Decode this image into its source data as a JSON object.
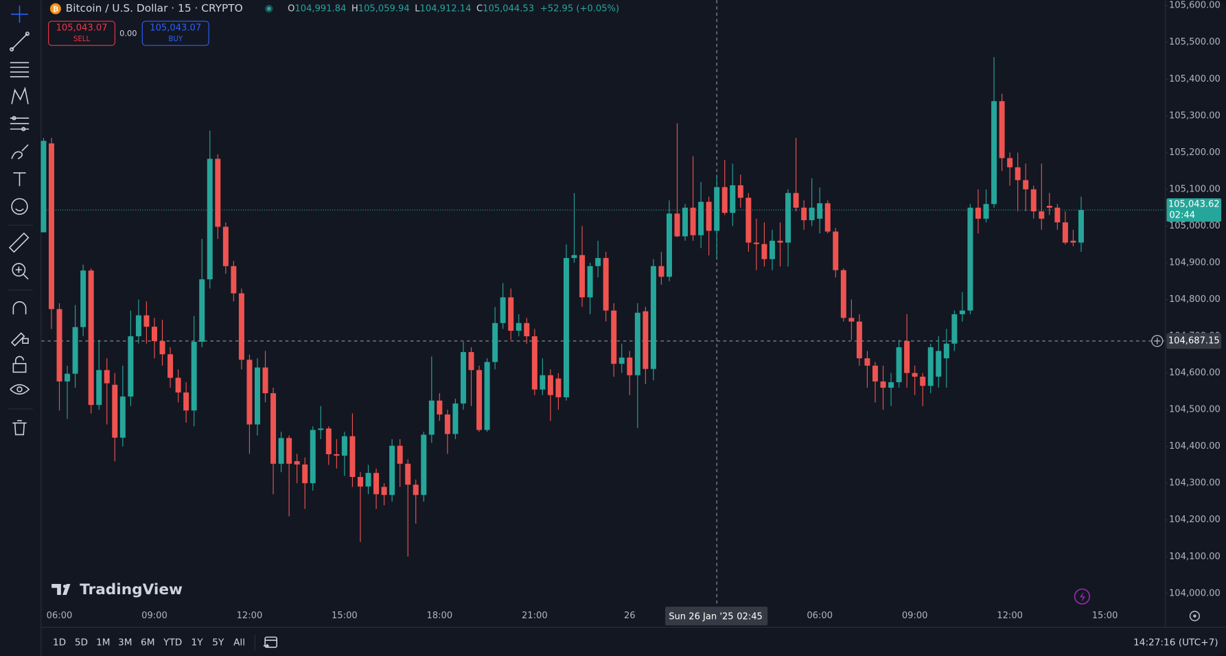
{
  "header": {
    "symbol": "Bitcoin / U.S. Dollar · 15 · CRYPTO",
    "o_key": "O",
    "o": "104,991.84",
    "h_key": "H",
    "h": "105,059.94",
    "l_key": "L",
    "l": "104,912.14",
    "c_key": "C",
    "c": "105,044.53",
    "change": "+52.95 (+0.05%)"
  },
  "trade": {
    "sell_price": "105,043.07",
    "sell": "SELL",
    "spread": "0.00",
    "buy_price": "105,043.07",
    "buy": "BUY"
  },
  "watermark": "TradingView",
  "ranges": [
    "1D",
    "5D",
    "1M",
    "3M",
    "6M",
    "YTD",
    "1Y",
    "5Y",
    "All"
  ],
  "clock": "14:27:16 (UTC+7)",
  "chart_data": {
    "type": "candlestick",
    "up_color": "#26a69a",
    "down_color": "#ef5350",
    "ylim": [
      103913,
      105615
    ],
    "yticks": [
      {
        "value": 104000,
        "label": "104,000.00"
      },
      {
        "value": 104100,
        "label": "104,100.00"
      },
      {
        "value": 104200,
        "label": "104,200.00"
      },
      {
        "value": 104300,
        "label": "104,300.00"
      },
      {
        "value": 104400,
        "label": "104,400.00"
      },
      {
        "value": 104500,
        "label": "104,500.00"
      },
      {
        "value": 104600,
        "label": "104,600.00"
      },
      {
        "value": 104700,
        "label": "104,700.00"
      },
      {
        "value": 104800,
        "label": "104,800.00"
      },
      {
        "value": 104900,
        "label": "104,900.00"
      },
      {
        "value": 105000,
        "label": "105,000.00"
      },
      {
        "value": 105100,
        "label": "105,100.00"
      },
      {
        "value": 105200,
        "label": "105,200.00"
      },
      {
        "value": 105300,
        "label": "105,300.00"
      },
      {
        "value": 105400,
        "label": "105,400.00"
      },
      {
        "value": 105500,
        "label": "105,500.00"
      },
      {
        "value": 105600,
        "label": "105,600.00"
      }
    ],
    "grid": false,
    "categories": [
      null,
      null,
      "06:00",
      null,
      null,
      null,
      null,
      null,
      null,
      null,
      null,
      null,
      null,
      null,
      "09:00",
      null,
      null,
      null,
      null,
      null,
      null,
      null,
      null,
      null,
      null,
      null,
      "12:00",
      null,
      null,
      null,
      null,
      null,
      null,
      null,
      null,
      null,
      null,
      null,
      "15:00",
      null,
      null,
      null,
      null,
      null,
      null,
      null,
      null,
      null,
      null,
      null,
      "18:00",
      null,
      null,
      null,
      null,
      null,
      null,
      null,
      null,
      null,
      null,
      null,
      "21:00",
      null,
      null,
      null,
      null,
      null,
      null,
      null,
      null,
      null,
      null,
      null,
      "26",
      null,
      null,
      null,
      null,
      null,
      null,
      null,
      null,
      null,
      null,
      null,
      null,
      null,
      null,
      null,
      null,
      null,
      null,
      null,
      null,
      null,
      null,
      null,
      "06:00",
      null,
      null,
      null,
      null,
      null,
      null,
      null,
      null,
      null,
      null,
      null,
      "09:00",
      null,
      null,
      null,
      null,
      null,
      null,
      null,
      null,
      null,
      null,
      null,
      "12:00",
      null,
      null,
      null,
      null,
      null,
      null,
      null,
      null,
      null,
      null,
      null,
      "15:00"
    ],
    "open": [
      104983,
      105225,
      104774,
      104577,
      104598,
      104725,
      104879,
      104513,
      104608,
      104568,
      104424,
      104536,
      104700,
      104757,
      104726,
      104687,
      104651,
      104587,
      104547,
      104498,
      104685,
      104855,
      105183,
      104998,
      104891,
      104817,
      104636,
      104460,
      104615,
      104545,
      104353,
      104423,
      104360,
      104351,
      104300,
      104445,
      104449,
      104379,
      104375,
      104428,
      104317,
      104291,
      104328,
      104290,
      104268,
      104402,
      104353,
      104296,
      104268,
      104432,
      104525,
      104487,
      104434,
      104517,
      104657,
      104608,
      104445,
      104630,
      104736,
      104806,
      104715,
      104736,
      104700,
      104555,
      104594,
      104585,
      104534,
      104913,
      104921,
      104806,
      104891,
      104913,
      104770,
      104625,
      104642,
      104594,
      104768,
      104611,
      104891,
      104862,
      105034,
      104972,
      105050,
      104975,
      105066,
      104987,
      105106,
      105036,
      105111,
      105077,
      104955,
      104951,
      104910,
      104960,
      104955,
      105090,
      105050,
      105016,
      105020,
      105062,
      104985,
      104880,
      104750,
      104740,
      104640,
      104620,
      104577,
      104560,
      104575,
      104687,
      104600,
      104590,
      104565,
      104590,
      104640,
      104680,
      104760,
      104770,
      105050,
      105020,
      105060,
      105340,
      105185,
      105160,
      105125,
      105100,
      105040,
      105055,
      105050,
      105010,
      104960,
      104955,
      null,
      null,
      null
    ],
    "high": [
      105240,
      105240,
      104790,
      104620,
      104785,
      104895,
      104885,
      104690,
      104640,
      104600,
      104620,
      104770,
      104800,
      104795,
      104750,
      104745,
      104670,
      104610,
      104575,
      104755,
      104965,
      105260,
      105195,
      105010,
      104905,
      104830,
      104650,
      104640,
      104660,
      104560,
      104440,
      104430,
      104380,
      104370,
      104455,
      104510,
      104455,
      104420,
      104440,
      104490,
      104330,
      104350,
      104340,
      104300,
      104420,
      104420,
      104365,
      104310,
      104440,
      104645,
      104545,
      104500,
      104530,
      104685,
      104670,
      104620,
      104640,
      104780,
      104845,
      104830,
      104760,
      104750,
      104720,
      104640,
      104610,
      104600,
      104950,
      105090,
      105000,
      104900,
      104960,
      104930,
      104790,
      104680,
      104660,
      104790,
      104780,
      104910,
      104930,
      105070,
      105280,
      105060,
      105190,
      105120,
      105080,
      105140,
      105180,
      105170,
      105140,
      105090,
      105020,
      105010,
      104990,
      105010,
      105100,
      105240,
      105070,
      105130,
      105105,
      105070,
      104995,
      104885,
      104800,
      104760,
      104660,
      104630,
      104620,
      104600,
      104690,
      104760,
      104620,
      104600,
      104680,
      104700,
      104720,
      104770,
      104820,
      105060,
      105100,
      105100,
      105460,
      105360,
      105200,
      105200,
      105170,
      105110,
      105170,
      105090,
      105060,
      105040,
      104990,
      105080,
      null,
      null,
      null
    ],
    "low": [
      104983,
      104720,
      104498,
      104475,
      104560,
      104700,
      104490,
      104500,
      104460,
      104360,
      104400,
      104510,
      104680,
      104680,
      104640,
      104620,
      104560,
      104520,
      104465,
      104455,
      104670,
      104830,
      104965,
      104870,
      104795,
      104610,
      104380,
      104430,
      104520,
      104270,
      104330,
      104210,
      104300,
      104230,
      104280,
      104420,
      104350,
      104340,
      104320,
      104290,
      104140,
      104270,
      104230,
      104240,
      104250,
      104290,
      104100,
      104190,
      104250,
      104410,
      104470,
      104380,
      104420,
      104500,
      104510,
      104440,
      104440,
      104610,
      104720,
      104690,
      104700,
      104680,
      104540,
      104540,
      104470,
      104500,
      104525,
      104900,
      104780,
      104760,
      104860,
      104740,
      104590,
      104600,
      104540,
      104450,
      104570,
      104580,
      104840,
      104850,
      104970,
      104960,
      104960,
      104940,
      104920,
      104910,
      105030,
      105000,
      105050,
      104930,
      104880,
      104890,
      104880,
      104890,
      104890,
      105040,
      104990,
      105000,
      104980,
      104980,
      104860,
      104740,
      104690,
      104620,
      104560,
      104520,
      104500,
      104510,
      104560,
      104560,
      104540,
      104510,
      104545,
      104560,
      104560,
      104660,
      104740,
      104760,
      104980,
      105010,
      105050,
      105150,
      105110,
      105040,
      105040,
      105020,
      104990,
      105030,
      104990,
      104950,
      104945,
      104930,
      null,
      null,
      null
    ],
    "close": [
      105232,
      104774,
      104577,
      104598,
      104725,
      104879,
      104513,
      104608,
      104572,
      104424,
      104536,
      104700,
      104757,
      104726,
      104687,
      104651,
      104587,
      104547,
      104498,
      104685,
      104855,
      105183,
      104998,
      104891,
      104817,
      104636,
      104460,
      104615,
      104545,
      104353,
      104423,
      104353,
      104351,
      104300,
      104445,
      104449,
      104379,
      104375,
      104428,
      104317,
      104291,
      104328,
      104270,
      104268,
      104402,
      104353,
      104296,
      104268,
      104432,
      104525,
      104487,
      104434,
      104517,
      104657,
      104608,
      104445,
      104630,
      104736,
      104806,
      104715,
      104736,
      104700,
      104555,
      104594,
      104540,
      104534,
      104913,
      104921,
      104806,
      104891,
      104913,
      104770,
      104625,
      104642,
      104594,
      104764,
      104611,
      104891,
      104862,
      105034,
      104972,
      105050,
      104975,
      105066,
      104987,
      105106,
      105036,
      105111,
      105077,
      104955,
      104951,
      104910,
      104960,
      104955,
      105090,
      105050,
      105016,
      105050,
      105062,
      104985,
      104880,
      104750,
      104740,
      104640,
      104620,
      104577,
      104560,
      104575,
      104670,
      104600,
      104590,
      104565,
      104670,
      104660,
      104680,
      104760,
      104770,
      105050,
      105020,
      105060,
      105340,
      105185,
      105160,
      105125,
      105100,
      105040,
      105020,
      105050,
      105010,
      104955,
      104955,
      105043.62,
      null,
      null,
      null
    ],
    "price_line": {
      "value": 105043.62,
      "label": "105,043.62",
      "countdown": "02:44",
      "color": "#26a69a"
    },
    "crosshair": {
      "value": 104687.15,
      "label": "104,687.15",
      "date": "Sun 26 Jan '25",
      "time": "02:45"
    }
  }
}
